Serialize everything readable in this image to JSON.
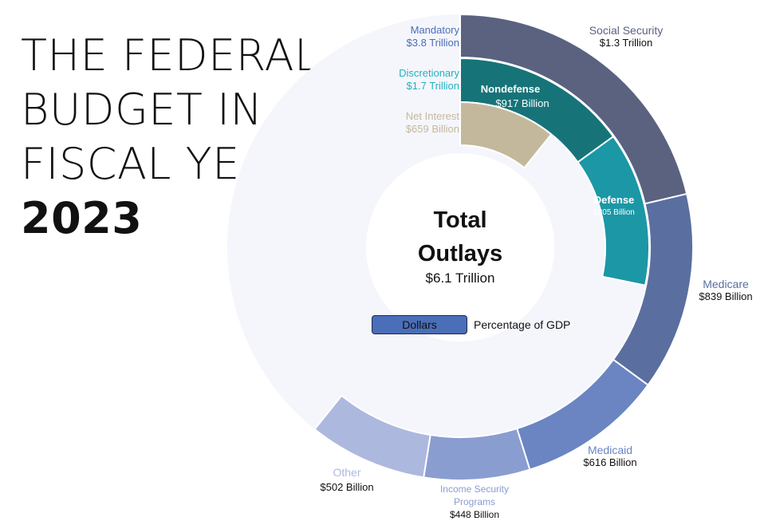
{
  "title": {
    "lines": [
      "THE FEDERAL",
      "BUDGET IN",
      "FISCAL YEAR"
    ],
    "year": "2023"
  },
  "center": {
    "title_line1": "Total",
    "title_line2": "Outlays",
    "value": "$6.1 Trillion"
  },
  "toggle": {
    "dollars": "Dollars",
    "gdp": "Percentage of GDP"
  },
  "chart_data": {
    "type": "sunburst",
    "total": 6.1,
    "unit": "trillion USD",
    "rings": [
      {
        "name": "Mandatory",
        "label": "$3.8 Trillion",
        "value": 3.8,
        "color": "#4a6eb8",
        "children": [
          {
            "name": "Social Security",
            "label": "$1.3 Trillion",
            "value": 1.3,
            "color": "#5a6280"
          },
          {
            "name": "Medicare",
            "label": "$839 Billion",
            "value": 0.839,
            "color": "#5a6ea0"
          },
          {
            "name": "Medicaid",
            "label": "$616 Billion",
            "value": 0.616,
            "color": "#6a85c2"
          },
          {
            "name": "Income Security Programs",
            "label": "$448 Billion",
            "value": 0.448,
            "color": "#8a9dd0"
          },
          {
            "name": "Other",
            "label": "$502 Billion",
            "value": 0.502,
            "color": "#adb8df"
          }
        ]
      },
      {
        "name": "Discretionary",
        "label": "$1.7 Trillion",
        "value": 1.7,
        "color": "#22b2c0",
        "children": [
          {
            "name": "Nondefense",
            "label": "$917 Billion",
            "value": 0.917,
            "color": "#167479"
          },
          {
            "name": "Defense",
            "label": "$805 Billion",
            "value": 0.805,
            "color": "#1b97a6"
          }
        ]
      },
      {
        "name": "Net Interest",
        "label": "$659 Billion",
        "value": 0.659,
        "color": "#c4b89c",
        "children": []
      }
    ],
    "colors": {
      "background_ring": "#f5f6fc",
      "mandatory_text": "#4a6eb8",
      "discretionary_text": "#22b2c0",
      "net_interest_text": "#c4b89c"
    }
  }
}
